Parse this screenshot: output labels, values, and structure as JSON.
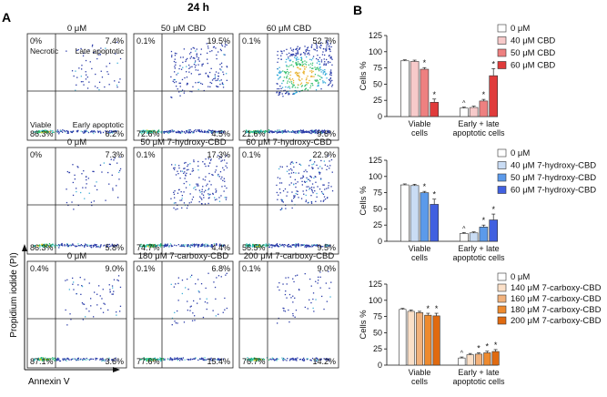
{
  "figure_title": "24 h",
  "panel_a_label": "A",
  "panel_b_label": "B",
  "flow": {
    "y_axis_label": "Propidium iodide (PI)",
    "x_axis_label": "Annexin V",
    "quadrant_names": {
      "ul": "Necrotic",
      "ur": "Late apoptotic",
      "ll": "Viable",
      "lr": "Early apoptotic"
    },
    "rows": [
      {
        "panels": [
          {
            "title": "0 μM",
            "ul": "0%",
            "ur": "7.4%",
            "ll": "86.3%",
            "lr": "6.2%",
            "density": "low",
            "show_names": true
          },
          {
            "title": "50 μM CBD",
            "ul": "0.1%",
            "ur": "19.5%",
            "ll": "72.6%",
            "lr": "4.5%",
            "density": "mid",
            "show_names": false
          },
          {
            "title": "60 μM CBD",
            "ul": "0.1%",
            "ur": "52.7%",
            "ll": "21.6%",
            "lr": "9.6%",
            "density": "high",
            "show_names": false
          }
        ]
      },
      {
        "panels": [
          {
            "title": "0 μM",
            "ul": "0%",
            "ur": "7.3%",
            "ll": "86.3%",
            "lr": "5.8%",
            "density": "low",
            "show_names": false
          },
          {
            "title": "50 μM 7-hydroxy-CBD",
            "ul": "0.1%",
            "ur": "17.3%",
            "ll": "74.7%",
            "lr": "4.4%",
            "density": "mid",
            "show_names": false
          },
          {
            "title": "60 μM 7-hydroxy-CBD",
            "ul": "0.1%",
            "ur": "22.9%",
            "ll": "56.5%",
            "lr": "9.5%",
            "density": "mid",
            "show_names": false
          }
        ]
      },
      {
        "panels": [
          {
            "title": "0 μM",
            "ul": "0.4%",
            "ur": "9.0%",
            "ll": "87.1%",
            "lr": "3.6%",
            "density": "low",
            "show_names": false
          },
          {
            "title": "180 μM 7-carboxy-CBD",
            "ul": "0.1%",
            "ur": "6.8%",
            "ll": "77.6%",
            "lr": "15.4%",
            "density": "low",
            "show_names": false
          },
          {
            "title": "200 μM 7-carboxy-CBD",
            "ul": "0.1%",
            "ur": "9.0%",
            "ll": "76.7%",
            "lr": "14.2%",
            "density": "low",
            "show_names": false
          }
        ]
      }
    ]
  },
  "chart_data": [
    {
      "type": "bar",
      "ylabel": "Cells %",
      "ylim": [
        0,
        125
      ],
      "yticks": [
        "0",
        "25",
        "50",
        "75",
        "100",
        "125"
      ],
      "groups": [
        [
          "Viable",
          "cells"
        ],
        [
          "Early + late",
          "apoptotic cells"
        ]
      ],
      "series": [
        {
          "name": "0 μM",
          "color": "#ffffff",
          "values": [
            86,
            13
          ],
          "errors": [
            1.5,
            1.5
          ],
          "marks": [
            "",
            "^"
          ]
        },
        {
          "name": "40 μM CBD",
          "color": "#f7caca",
          "values": [
            85,
            14
          ],
          "errors": [
            2,
            2
          ],
          "marks": [
            "",
            ""
          ]
        },
        {
          "name": "50 μM CBD",
          "color": "#ee8080",
          "values": [
            73,
            24
          ],
          "errors": [
            2.5,
            2.5
          ],
          "marks": [
            "*",
            "*"
          ]
        },
        {
          "name": "60 μM CBD",
          "color": "#e03b3b",
          "values": [
            22,
            63
          ],
          "errors": [
            5,
            11
          ],
          "marks": [
            "*",
            "*"
          ]
        }
      ]
    },
    {
      "type": "bar",
      "ylabel": "Cells %",
      "ylim": [
        0,
        125
      ],
      "yticks": [
        "0",
        "25",
        "50",
        "75",
        "100",
        "125"
      ],
      "groups": [
        [
          "Viable",
          "cells"
        ],
        [
          "Early + late",
          "apoptotic cells"
        ]
      ],
      "series": [
        {
          "name": "0 μM",
          "color": "#ffffff",
          "values": [
            87,
            12
          ],
          "errors": [
            1.5,
            1.5
          ],
          "marks": [
            "",
            "^"
          ]
        },
        {
          "name": "40 μM 7-hydroxy-CBD",
          "color": "#c9dcf4",
          "values": [
            86,
            13
          ],
          "errors": [
            2,
            1.5
          ],
          "marks": [
            "",
            ""
          ]
        },
        {
          "name": "50 μM 7-hydroxy-CBD",
          "color": "#5b9aea",
          "values": [
            75,
            22
          ],
          "errors": [
            2,
            3
          ],
          "marks": [
            "*",
            "*"
          ]
        },
        {
          "name": "60 μM 7-hydroxy-CBD",
          "color": "#4160e0",
          "values": [
            57,
            33
          ],
          "errors": [
            8,
            9
          ],
          "marks": [
            "*",
            "*"
          ]
        }
      ]
    },
    {
      "type": "bar",
      "ylabel": "Cells %",
      "ylim": [
        0,
        125
      ],
      "yticks": [
        "0",
        "25",
        "50",
        "75",
        "100",
        "125"
      ],
      "groups": [
        [
          "Viable",
          "cells"
        ],
        [
          "Early + late",
          "apoptotic cells"
        ]
      ],
      "series": [
        {
          "name": "0 μM",
          "color": "#ffffff",
          "values": [
            86,
            11
          ],
          "errors": [
            1.5,
            1.5
          ],
          "marks": [
            "",
            "^"
          ]
        },
        {
          "name": "140 μM 7-carboxy-CBD",
          "color": "#fbe0c8",
          "values": [
            83,
            16
          ],
          "errors": [
            2,
            2
          ],
          "marks": [
            "",
            ""
          ]
        },
        {
          "name": "160 μM 7-carboxy-CBD",
          "color": "#f2b27c",
          "values": [
            81,
            17
          ],
          "errors": [
            2,
            2
          ],
          "marks": [
            "",
            "*"
          ]
        },
        {
          "name": "180 μM 7-carboxy-CBD",
          "color": "#ee8a2e",
          "values": [
            77,
            19
          ],
          "errors": [
            3,
            2.5
          ],
          "marks": [
            "*",
            "*"
          ]
        },
        {
          "name": "200 μM 7-carboxy-CBD",
          "color": "#e06a10",
          "values": [
            76,
            21
          ],
          "errors": [
            4,
            3
          ],
          "marks": [
            "*",
            "*"
          ]
        }
      ]
    }
  ]
}
